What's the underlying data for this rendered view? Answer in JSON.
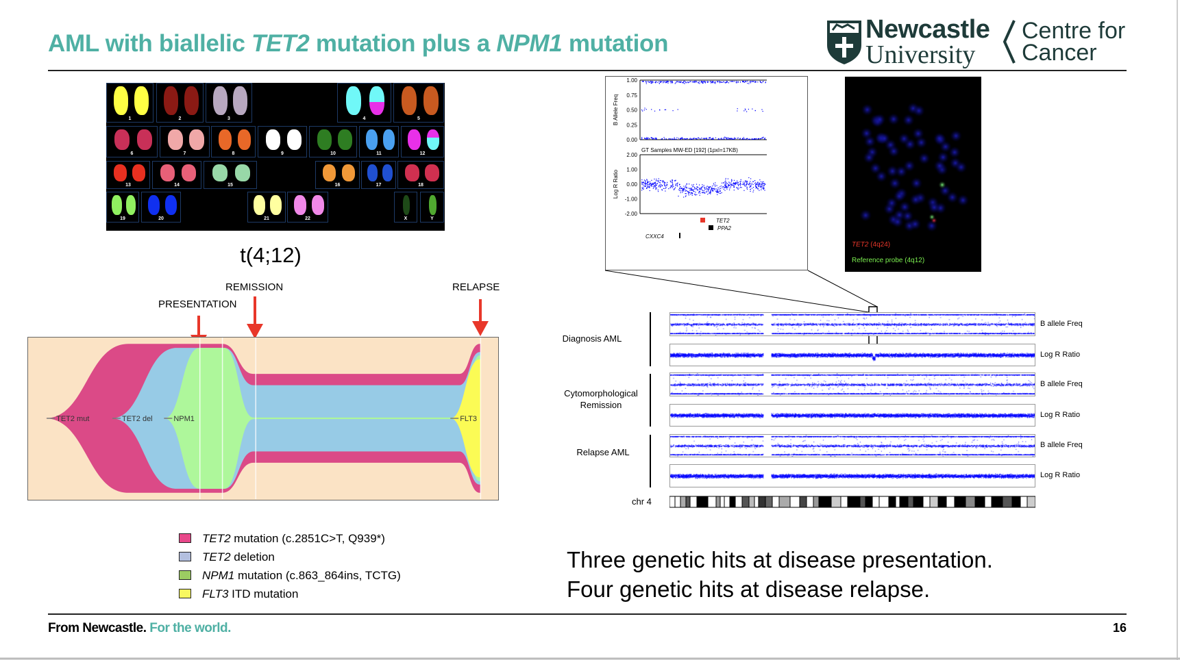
{
  "title": {
    "p1": "AML with biallelic ",
    "g1": "TET2",
    "p2": " mutation plus a ",
    "g2": "NPM1",
    "p3": " mutation"
  },
  "logo": {
    "university_line1": "Newcastle",
    "university_line2": "University",
    "centre_line1": "Centre for",
    "centre_line2": "Cancer"
  },
  "karyotype": {
    "caption": "t(4;12)",
    "chromosomes": [
      {
        "label": "1",
        "color": "#ffff44"
      },
      {
        "label": "2",
        "color": "#8b1a14"
      },
      {
        "label": "3",
        "color": "#b8a8c0"
      },
      {
        "label": "4",
        "color": "#70f8f8",
        "derivative_color": "#e830e8"
      },
      {
        "label": "5",
        "color": "#c85a20"
      },
      {
        "label": "6",
        "color": "#c83058"
      },
      {
        "label": "7",
        "color": "#f0a8a8"
      },
      {
        "label": "8",
        "color": "#e86828"
      },
      {
        "label": "9",
        "color": "#ffffff"
      },
      {
        "label": "10",
        "color": "#2e7d22"
      },
      {
        "label": "11",
        "color": "#4aa0f0"
      },
      {
        "label": "12",
        "color": "#e830e8",
        "derivative_color": "#70f8f8"
      },
      {
        "label": "13",
        "color": "#e83020"
      },
      {
        "label": "14",
        "color": "#e86078"
      },
      {
        "label": "15",
        "color": "#98d8a8"
      },
      {
        "label": "16",
        "color": "#f09838"
      },
      {
        "label": "17",
        "color": "#2050d0"
      },
      {
        "label": "18",
        "color": "#d03050"
      },
      {
        "label": "19",
        "color": "#90f060"
      },
      {
        "label": "20",
        "color": "#1030f0"
      },
      {
        "label": "21",
        "color": "#ffffa0"
      },
      {
        "label": "22",
        "color": "#f088e8"
      },
      {
        "label": "X",
        "color": "#1e4a18"
      },
      {
        "label": "Y",
        "color": "#50a830"
      }
    ]
  },
  "fishplot": {
    "stages": [
      "PRESENTATION",
      "REMISSION",
      "RELAPSE"
    ],
    "clones": [
      {
        "label": "TET2 mut",
        "color": "#db4a87"
      },
      {
        "label": "TET2 del",
        "color": "#97cbe6"
      },
      {
        "label": "NPM1",
        "color": "#aef79b"
      },
      {
        "label": "FLT3",
        "color": "#fbfb55"
      }
    ],
    "background": "#fbe3c5"
  },
  "legend": [
    {
      "gene": "TET2",
      "text": " mutation (c.2851C>T, Q939*)",
      "color": "#e8488a"
    },
    {
      "gene": "TET2",
      "text": " deletion",
      "color": "#b3bfdf"
    },
    {
      "gene": "NPM1",
      "text": " mutation (c.863_864ins, TCTG)",
      "color": "#9ccc62"
    },
    {
      "gene": "FLT3",
      "text": " ITD mutation",
      "color": "#f8f860"
    }
  ],
  "snp_zoom": {
    "baf_axis_label": "B Allele Freq",
    "baf_ticks": [
      "1.00",
      "0.75",
      "0.50",
      "0.25",
      "0.00"
    ],
    "lrr_title": "GT Samples MW-ED [192]  (1pxl=17KB)",
    "lrr_axis_label": "Log R Ratio",
    "lrr_ticks": [
      "2.00",
      "1.00",
      "0.00",
      "-1.00",
      "-2.00"
    ],
    "genes": [
      "TET2",
      "PPA2",
      "CXXC4"
    ],
    "tet2_color": "#e8372a"
  },
  "fish_image": {
    "probe1_gene": "TET2",
    "probe1_locus": " (4q24)",
    "probe1_color": "#e8372a",
    "probe2": "Reference probe (4q12)",
    "probe2_color": "#7cf050"
  },
  "genome": {
    "samples": [
      {
        "label": "Diagnosis AML"
      },
      {
        "label": "Cytomorphological Remission"
      },
      {
        "label": "Relapse AML"
      }
    ],
    "track_labels": [
      "B allele Freq",
      "Log R Ratio"
    ],
    "chromosome": "chr 4",
    "point_color": "#0000ff"
  },
  "summary": [
    "Three genetic hits at disease presentation.",
    "Four genetic hits at disease relapse."
  ],
  "footer": {
    "part1": "From Newcastle.",
    "part2": " For the world.",
    "accent": "#4fb0a4"
  },
  "page_number": "16"
}
